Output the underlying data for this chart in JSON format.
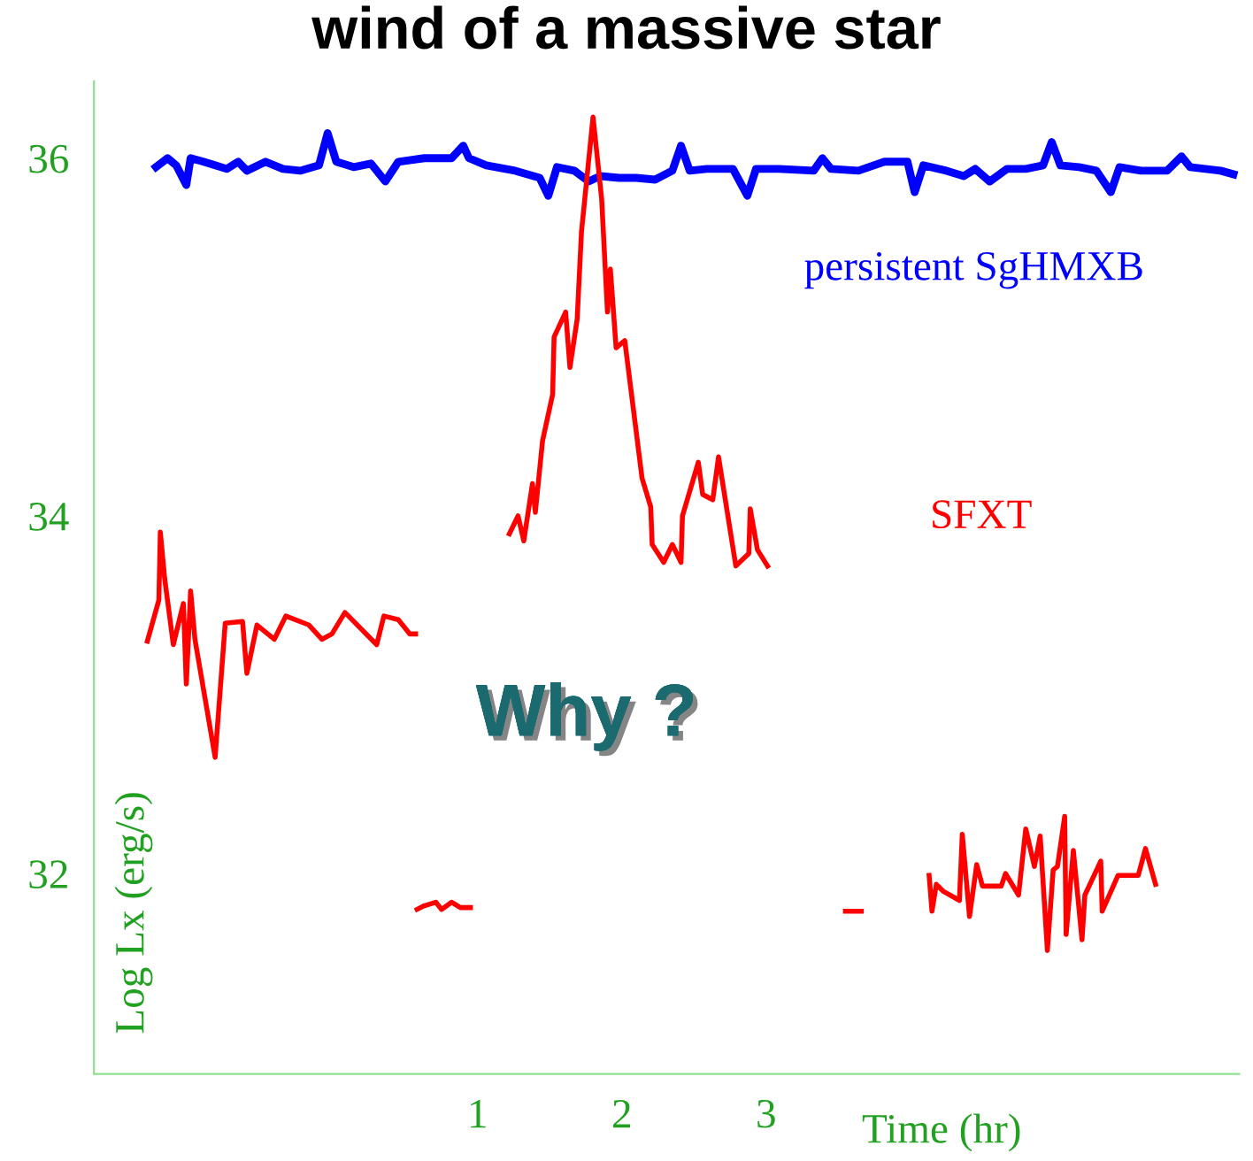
{
  "chart_data": {
    "type": "line",
    "title": "wind of a massive star",
    "xlabel": "Time (hr)",
    "ylabel": "Log Lx (erg/s)",
    "xlim": [
      -1.66,
      6.28
    ],
    "ylim": [
      30.88,
      36.43
    ],
    "xticks": [
      1,
      2,
      3
    ],
    "yticks": [
      32,
      34,
      36
    ],
    "grid": false,
    "legend": false,
    "marker": "none",
    "line_style": "solid",
    "annotations": [
      "Why ?"
    ],
    "series": [
      {
        "name": "persistent SgHMXB",
        "color": "#0000ff",
        "x": [
          -1.23,
          -1.15,
          -1.09,
          -1.02,
          -0.99,
          -0.9,
          -0.82,
          -0.74,
          -0.66,
          -0.6,
          -0.47,
          -0.35,
          -0.23,
          -0.1,
          -0.04,
          0.02,
          0.14,
          0.26,
          0.36,
          0.45,
          0.63,
          0.82,
          0.9,
          0.94,
          1.06,
          1.26,
          1.43,
          1.49,
          1.55,
          1.67,
          1.77,
          1.85,
          1.98,
          2.1,
          2.23,
          2.35,
          2.41,
          2.47,
          2.59,
          2.77,
          2.87,
          2.93,
          3.09,
          3.33,
          3.39,
          3.45,
          3.64,
          3.82,
          3.98,
          4.03,
          4.09,
          4.25,
          4.37,
          4.45,
          4.55,
          4.67,
          4.8,
          4.92,
          4.98,
          5.04,
          5.17,
          5.29,
          5.39,
          5.45,
          5.6,
          5.78,
          5.88,
          5.94,
          6.15,
          6.24
        ],
        "values": [
          35.95,
          36.0,
          35.96,
          35.85,
          36.0,
          35.98,
          35.96,
          35.94,
          35.98,
          35.93,
          35.98,
          35.94,
          35.93,
          35.96,
          36.14,
          35.98,
          35.95,
          35.97,
          35.87,
          35.98,
          36.0,
          36.0,
          36.07,
          36.0,
          35.96,
          35.93,
          35.89,
          35.79,
          35.95,
          35.93,
          35.87,
          35.9,
          35.89,
          35.89,
          35.88,
          35.93,
          36.07,
          35.93,
          35.94,
          35.94,
          35.79,
          35.94,
          35.94,
          35.93,
          36.0,
          35.94,
          35.93,
          35.98,
          35.98,
          35.81,
          35.96,
          35.93,
          35.9,
          35.94,
          35.87,
          35.94,
          35.94,
          35.96,
          36.09,
          35.96,
          35.95,
          35.93,
          35.81,
          35.95,
          35.93,
          35.93,
          36.01,
          35.95,
          35.93,
          35.91
        ]
      },
      {
        "color": "#ff0000",
        "x": [
          -1.29,
          -1.21,
          -1.2,
          -1.17,
          -1.11,
          -1.04,
          -1.02,
          -0.99,
          -0.96,
          -0.82,
          -0.75,
          -0.63,
          -0.6,
          -0.53,
          -0.41,
          -0.33,
          -0.17,
          -0.08,
          -0.01,
          0.08,
          0.3,
          0.35,
          0.45,
          0.53,
          0.57
        ],
        "values": [
          33.3,
          33.53,
          33.91,
          33.65,
          33.28,
          33.51,
          33.06,
          33.58,
          33.31,
          32.65,
          33.4,
          33.41,
          33.12,
          33.39,
          33.31,
          33.44,
          33.39,
          33.31,
          33.34,
          33.46,
          33.28,
          33.44,
          33.42,
          33.34,
          33.34
        ]
      },
      {
        "color": "#ff0000",
        "x": [
          0.58,
          0.63,
          0.71,
          0.75,
          0.82,
          0.88,
          0.95
        ],
        "values": [
          31.8,
          31.82,
          31.84,
          31.8,
          31.84,
          31.81,
          31.81
        ]
      },
      {
        "name": "SFXT",
        "color": "#ff0000",
        "x": [
          1.22,
          1.28,
          1.32,
          1.38,
          1.4,
          1.45,
          1.52,
          1.53,
          1.61,
          1.64,
          1.69,
          1.72,
          1.8,
          1.86,
          1.9,
          1.92,
          1.96,
          2.02,
          2.14,
          2.2,
          2.21,
          2.29,
          2.35,
          2.41,
          2.42,
          2.53,
          2.56,
          2.63,
          2.67,
          2.79,
          2.88,
          2.89,
          2.94,
          3.01
        ],
        "values": [
          33.9,
          34.0,
          33.86,
          34.18,
          34.02,
          34.42,
          34.68,
          35.0,
          35.14,
          34.83,
          35.1,
          35.59,
          36.23,
          35.77,
          35.14,
          35.38,
          34.94,
          34.98,
          34.21,
          34.05,
          33.84,
          33.74,
          33.84,
          33.74,
          34.0,
          34.3,
          34.12,
          34.09,
          34.33,
          33.72,
          33.79,
          34.04,
          33.81,
          33.72
        ]
      },
      {
        "color": "#ff0000",
        "x": [
          3.55,
          3.66
        ],
        "values": [
          31.79,
          31.79
        ]
      },
      {
        "color": "#ff0000",
        "x": [
          4.13,
          4.15,
          4.18,
          4.23,
          4.34,
          4.36,
          4.41,
          4.46,
          4.5,
          4.63,
          4.66,
          4.75,
          4.8,
          4.86,
          4.9,
          4.95,
          4.99,
          5.02,
          5.07,
          5.08,
          5.13,
          5.19,
          5.21,
          5.32,
          5.33,
          5.44,
          5.58,
          5.63,
          5.7
        ],
        "values": [
          31.99,
          31.79,
          31.94,
          31.9,
          31.85,
          32.22,
          31.76,
          32.05,
          31.93,
          31.93,
          32.0,
          31.88,
          32.25,
          32.04,
          32.21,
          31.57,
          32.02,
          32.04,
          32.32,
          31.66,
          32.13,
          31.63,
          31.88,
          32.07,
          31.79,
          31.99,
          31.99,
          32.14,
          31.94
        ]
      }
    ]
  }
}
